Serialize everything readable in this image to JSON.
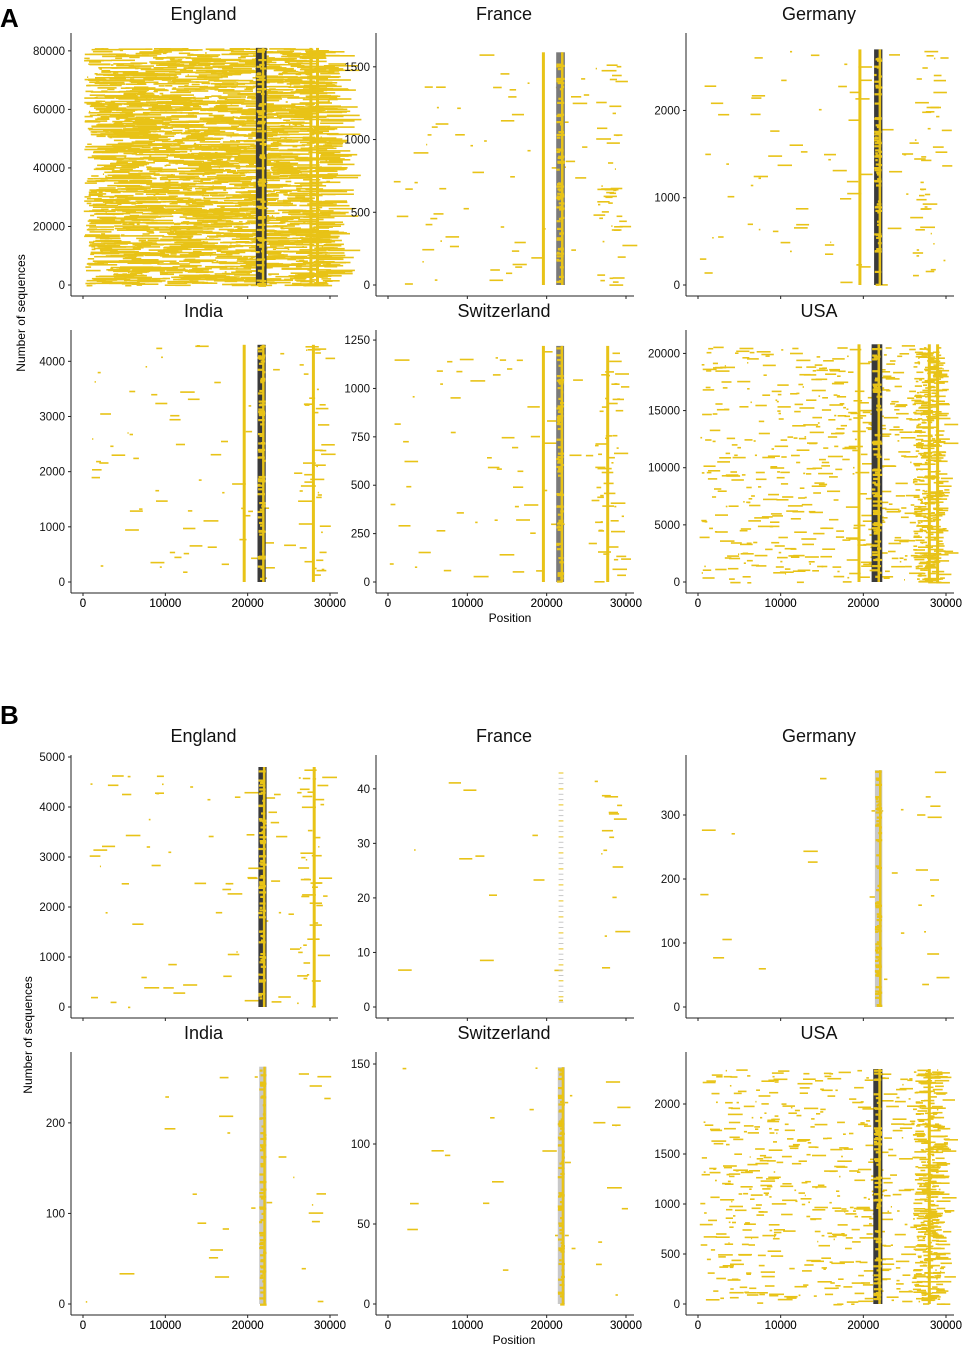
{
  "figure": {
    "shared_xlabel": "Position",
    "shared_ylabel": "Number of sequences"
  },
  "colors": {
    "mutation": "#E8C317",
    "deletion_dark": "#3A3A3A",
    "deletion_gray": "#7A7A7A",
    "deletion_light": "#C8C8C8",
    "axis": "#222222"
  },
  "chart_data": [
    {
      "panel": "A",
      "type": "scatter",
      "xlabel": "Position",
      "ylabel": "Number of sequences",
      "xlim": [
        0,
        30000
      ],
      "xticks": [
        "0",
        "10000",
        "20000",
        "30000"
      ],
      "facets": [
        {
          "title": "England",
          "ylim": [
            0,
            82000
          ],
          "ymax": 81000,
          "yticks": [
            0,
            20000,
            40000,
            60000,
            80000
          ],
          "density": "high",
          "spike_band": [
            21000,
            22300
          ],
          "spike_style": "dark",
          "mutation_columns": [
            21000,
            27500,
            28300
          ]
        },
        {
          "title": "France",
          "ylim": [
            0,
            1650
          ],
          "ymax": 1600,
          "yticks": [
            0,
            500,
            1000,
            1500
          ],
          "density": "low",
          "spike_band": [
            21200,
            22300
          ],
          "spike_style": "gray",
          "mutation_columns": [
            19400
          ]
        },
        {
          "title": "Germany",
          "ylim": [
            0,
            2750
          ],
          "ymax": 2700,
          "yticks": [
            0,
            1000,
            2000
          ],
          "density": "low",
          "spike_band": [
            21300,
            22300
          ],
          "spike_style": "dark",
          "mutation_columns": [
            19400
          ]
        },
        {
          "title": "India",
          "ylim": [
            0,
            4350
          ],
          "ymax": 4300,
          "yticks": [
            0,
            1000,
            2000,
            3000,
            4000
          ],
          "density": "low",
          "spike_band": [
            21200,
            22200
          ],
          "spike_style": "dark",
          "mutation_columns": [
            19400,
            27800
          ]
        },
        {
          "title": "Switzerland",
          "ylim": [
            0,
            1240
          ],
          "ymax": 1220,
          "yticks": [
            0,
            250,
            500,
            750,
            1000,
            1250
          ],
          "density": "low",
          "spike_band": [
            21200,
            22200
          ],
          "spike_style": "gray",
          "mutation_columns": [
            19400,
            27500
          ]
        },
        {
          "title": "USA",
          "ylim": [
            0,
            21000
          ],
          "ymax": 20800,
          "yticks": [
            0,
            5000,
            10000,
            15000,
            20000
          ],
          "density": "medium",
          "spike_band": [
            21000,
            22300
          ],
          "spike_style": "dark",
          "mutation_columns": [
            19300,
            27800,
            28800
          ]
        }
      ]
    },
    {
      "panel": "B",
      "type": "scatter",
      "xlabel": "Position",
      "ylabel": "Number of sequences",
      "xlim": [
        0,
        30000
      ],
      "xticks": [
        "0",
        "10000",
        "20000",
        "30000"
      ],
      "facets": [
        {
          "title": "England",
          "ylim": [
            0,
            4800
          ],
          "ymax": 4800,
          "yticks": [
            0,
            1000,
            2000,
            3000,
            4000,
            5000
          ],
          "density": "low",
          "spike_band": [
            21300,
            22300
          ],
          "spike_style": "dark",
          "mutation_columns": [
            27900
          ]
        },
        {
          "title": "France",
          "ylim": [
            0,
            44
          ],
          "ymax": 43,
          "yticks": [
            0,
            10,
            20,
            30,
            40
          ],
          "density": "sparse",
          "spike_band": [
            21500,
            22100
          ],
          "spike_style": "lines",
          "mutation_columns": []
        },
        {
          "title": "Germany",
          "ylim": [
            0,
            375
          ],
          "ymax": 370,
          "yticks": [
            0,
            100,
            200,
            300
          ],
          "density": "sparse",
          "spike_band": [
            21400,
            22300
          ],
          "spike_style": "light",
          "mutation_columns": []
        },
        {
          "title": "India",
          "ylim": [
            0,
            265
          ],
          "ymax": 262,
          "yticks": [
            0,
            100,
            200
          ],
          "density": "sparse",
          "spike_band": [
            21400,
            22300
          ],
          "spike_style": "light",
          "mutation_columns": []
        },
        {
          "title": "Switzerland",
          "ylim": [
            0,
            150
          ],
          "ymax": 148,
          "yticks": [
            0,
            50,
            100,
            150
          ],
          "density": "sparse",
          "spike_band": [
            21400,
            22300
          ],
          "spike_style": "light",
          "mutation_columns": []
        },
        {
          "title": "USA",
          "ylim": [
            0,
            2400
          ],
          "ymax": 2350,
          "yticks": [
            0,
            500,
            1000,
            1500,
            2000
          ],
          "density": "medium",
          "spike_band": [
            21200,
            22300
          ],
          "spike_style": "dark",
          "mutation_columns": [
            27800
          ]
        }
      ]
    }
  ]
}
